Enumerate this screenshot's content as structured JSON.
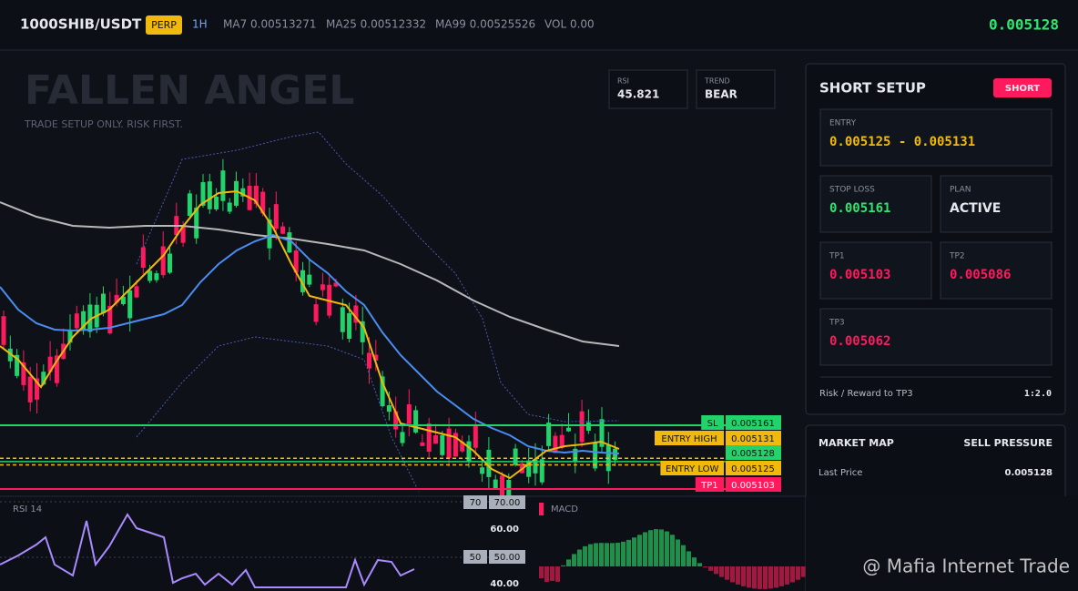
{
  "header": {
    "symbol": "1000SHIB/USDT",
    "badge": "PERP",
    "interval": "1H",
    "ma7": "MA7 0.00513271",
    "ma25": "MA25 0.00512332",
    "ma99": "MA99 0.00525526",
    "vol": "VOL 0.00",
    "price": 0.005128
  },
  "chart": {
    "title": "FALLEN ANGEL",
    "subtitle": "TRADE SETUP ONLY. RISK FIRST.",
    "rsi_box": {
      "label": "RSI",
      "value": 45.821
    },
    "trend_box": {
      "label": "TREND",
      "value": "BEAR"
    },
    "levels": [
      {
        "label": "SL",
        "value": 0.005161,
        "kind": "sl"
      },
      {
        "label": "ENTRY HIGH",
        "value": 0.005131,
        "kind": "entry"
      },
      {
        "label": null,
        "value": 0.005128,
        "kind": "last"
      },
      {
        "label": "ENTRY LOW",
        "value": 0.005125,
        "kind": "entry"
      },
      {
        "label": "TP1",
        "value": 0.005103,
        "kind": "tp"
      }
    ]
  },
  "rsi_panel": {
    "title": "RSI 14",
    "ticks": [
      "60.00",
      "40.00"
    ],
    "markers": [
      {
        "level": "70",
        "label": "70.00"
      },
      {
        "level": "50",
        "label": "50.00"
      }
    ]
  },
  "macd_panel": {
    "title": "MACD"
  },
  "setup": {
    "title": "SHORT SETUP",
    "badge": "SHORT",
    "entry": {
      "label": "ENTRY",
      "value": "0.005125 - 0.005131"
    },
    "stop_loss": {
      "label": "STOP LOSS",
      "value": 0.005161
    },
    "plan": {
      "label": "PLAN",
      "value": "ACTIVE"
    },
    "tp1": {
      "label": "TP1",
      "value": 0.005103
    },
    "tp2": {
      "label": "TP2",
      "value": 0.005086
    },
    "tp3": {
      "label": "TP3",
      "value": 0.005062
    },
    "risk_reward": {
      "label": "Risk / Reward to TP3",
      "value": "1:2.0"
    }
  },
  "market_map": {
    "title": "MARKET MAP",
    "status": "SELL PRESSURE",
    "last_price_label": "Last Price",
    "last_price": 0.005128
  },
  "watermark": "@ Mafia Internet Trade"
}
